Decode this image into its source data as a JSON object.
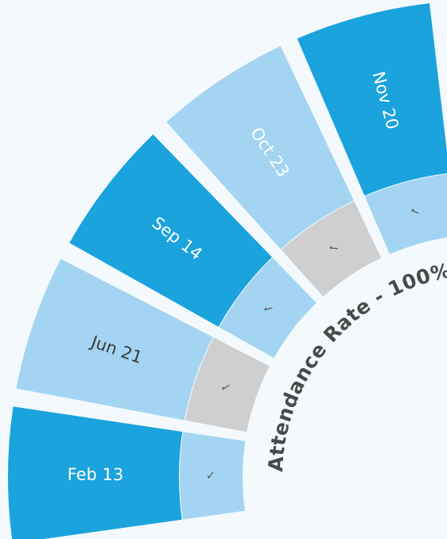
{
  "title": "Attendance Rate - 100%",
  "segments": [
    {
      "label": "Feb 13",
      "check": "✓",
      "color": "#1aa3dd",
      "check_color": "#a3d5f2",
      "text_color": "#ffffff"
    },
    {
      "label": "Jun 21",
      "check": "✓",
      "color": "#a3d5f2",
      "check_color": "#cfcfcf",
      "text_color": "#3a3a3a"
    },
    {
      "label": "Sep 14",
      "check": "✓",
      "color": "#1aa3dd",
      "check_color": "#a3d5f2",
      "text_color": "#ffffff"
    },
    {
      "label": "Oct 23",
      "check": "✓",
      "color": "#a3d5f2",
      "check_color": "#cfcfcf",
      "text_color": "#ffffff"
    },
    {
      "label": "Nov 20",
      "check": "✓",
      "color": "#1aa3dd",
      "check_color": "#a3d5f2",
      "text_color": "#ffffff"
    }
  ]
}
